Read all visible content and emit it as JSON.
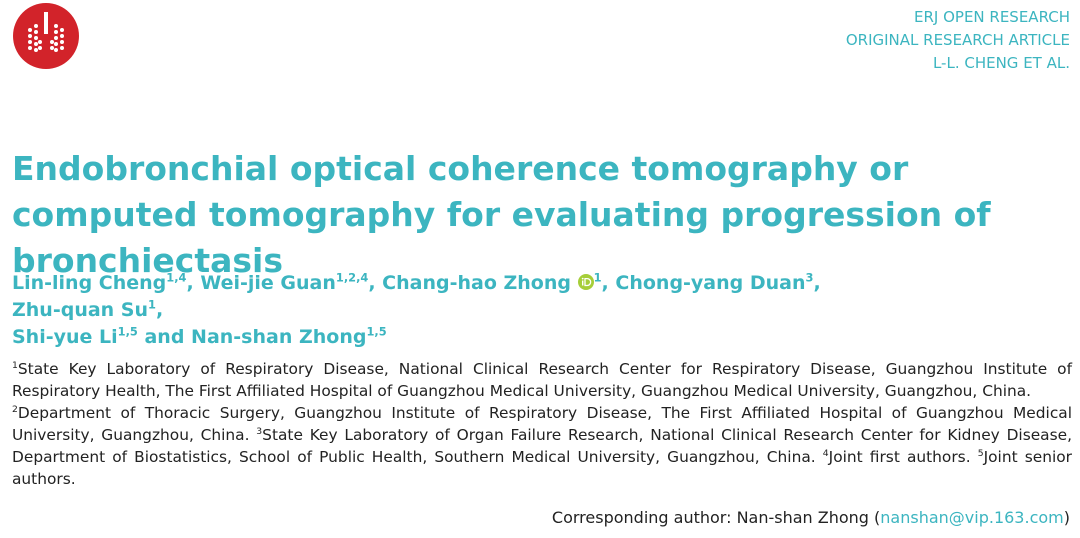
{
  "header": {
    "journal": "ERJ OPEN RESEARCH",
    "article_type": "ORIGINAL RESEARCH ARTICLE",
    "running_author": "L-L. CHENG ET AL."
  },
  "title": "Endobronchial optical coherence tomography or computed tomography for evaluating progression of bronchiectasis",
  "authors": [
    {
      "name": "Lin-ling Cheng",
      "affiliations": "1,4",
      "separator": ","
    },
    {
      "name": "Wei-jie Guan",
      "affiliations": "1,2,4",
      "separator": ","
    },
    {
      "name": "Chang-hao Zhong",
      "affiliations": "1",
      "separator": ",",
      "orcid": true
    },
    {
      "name": "Chong-yang Duan",
      "affiliations": "3",
      "separator": ","
    },
    {
      "name": "Zhu-quan Su",
      "affiliations": "1",
      "separator": ","
    },
    {
      "name": "Shi-yue Li",
      "affiliations": "1,5"
    },
    {
      "prefix": "and",
      "name": "Nan-shan Zhong",
      "affiliations": "1,5"
    }
  ],
  "affiliations": [
    {
      "number": "1",
      "text": "State Key Laboratory of Respiratory Disease, National Clinical Research Center for Respiratory Disease, Guangzhou Institute of Respiratory Health, The First Affiliated Hospital of Guangzhou Medical University, Guangzhou Medical University, Guangzhou, China."
    },
    {
      "number": "2",
      "text": "Department of Thoracic Surgery, Guangzhou Institute of Respiratory Disease, The First Affiliated Hospital of Guangzhou Medical University, Guangzhou, China."
    },
    {
      "number": "3",
      "text": "State Key Laboratory of Organ Failure Research, National Clinical Research Center for Kidney Disease, Department of Biostatistics, School of Public Health, Southern Medical University, Guangzhou, China."
    },
    {
      "number": "4",
      "text": "Joint first authors."
    },
    {
      "number": "5",
      "text": "Joint senior authors."
    }
  ],
  "correspondence": {
    "prefix": "Corresponding author: Nan-shan Zhong (",
    "email": "nanshan@vip.163.com",
    "suffix": ")"
  }
}
